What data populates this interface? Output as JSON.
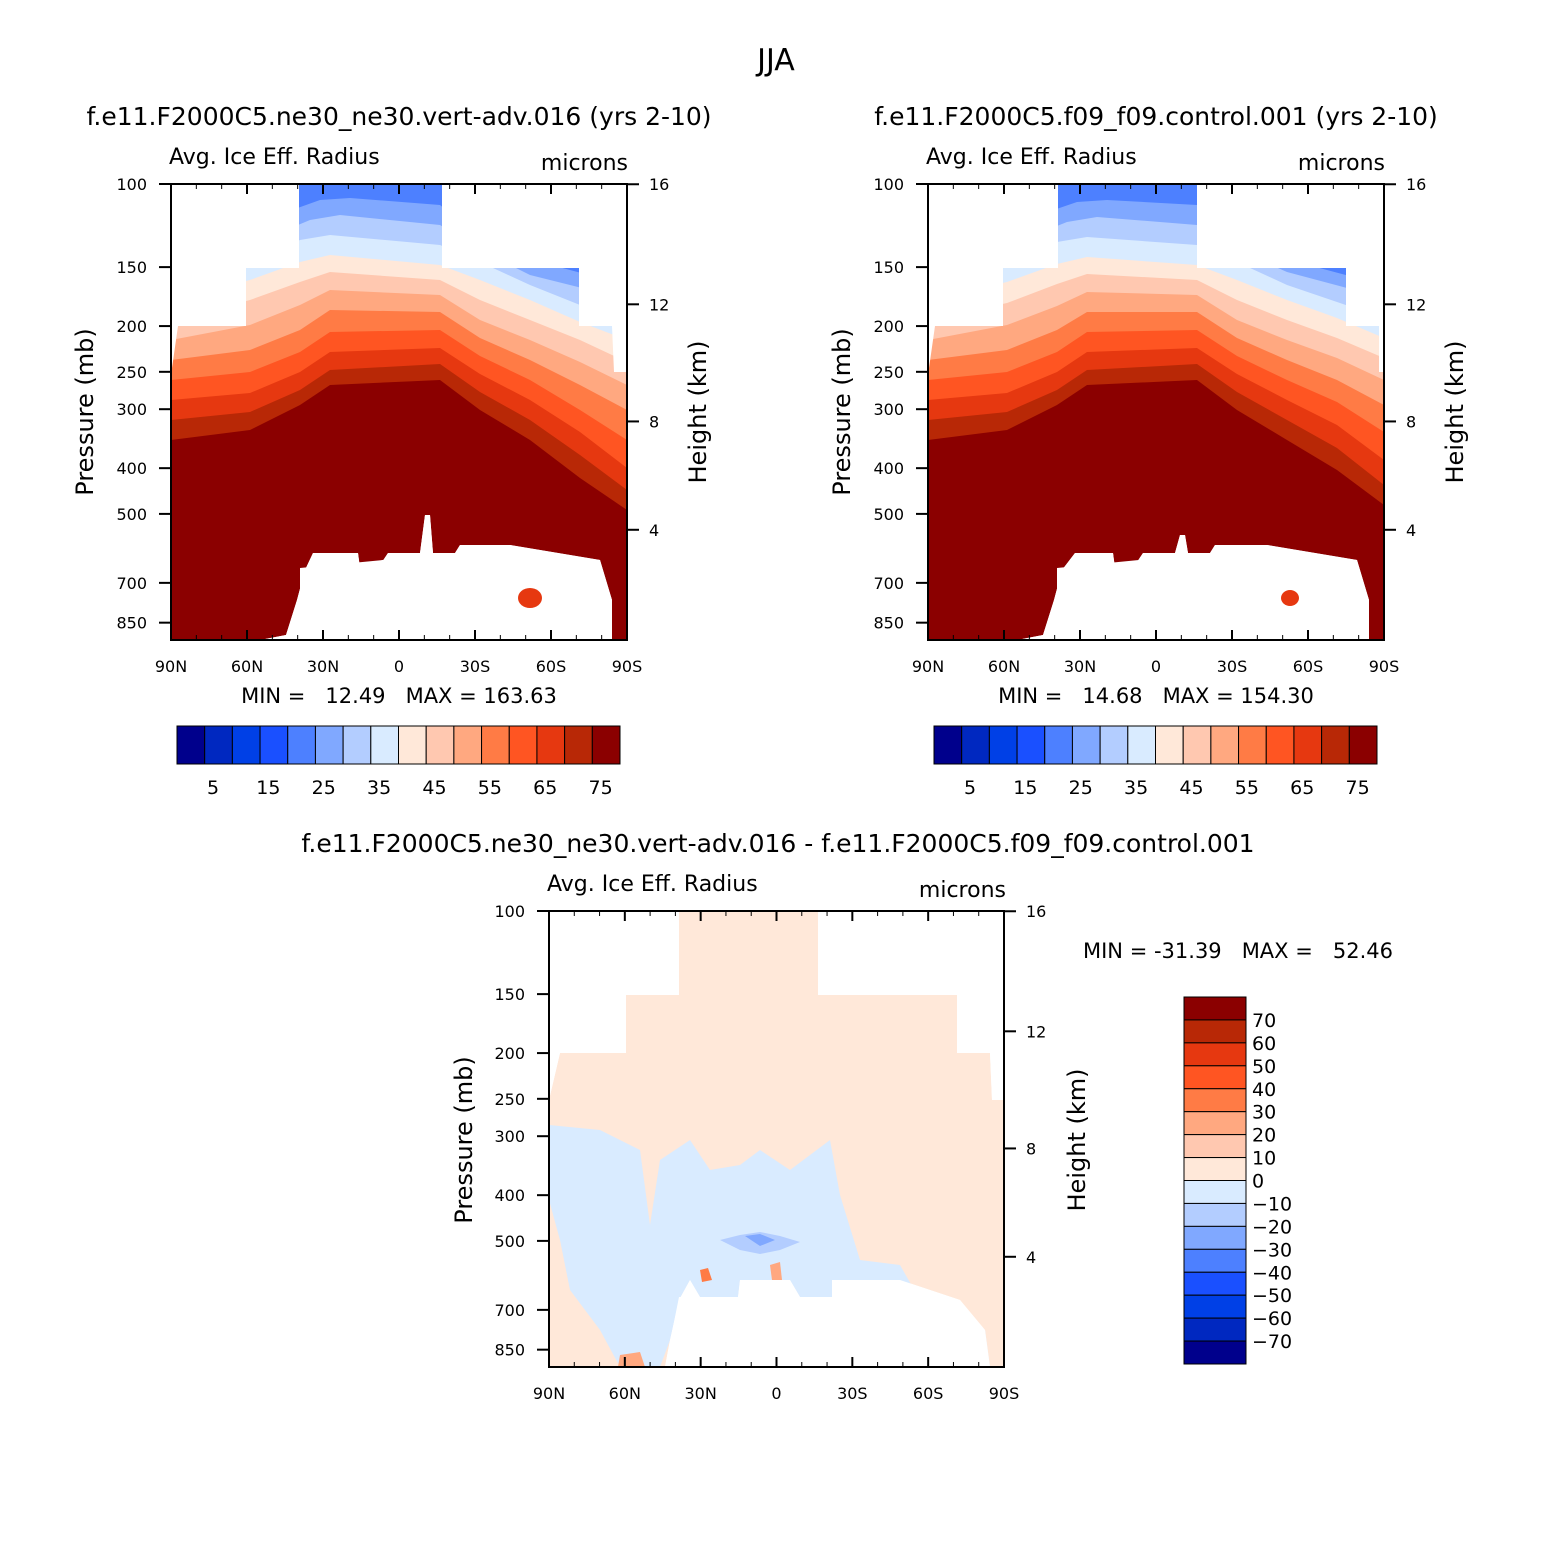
{
  "figure": {
    "main_title": "JJA"
  },
  "panels": [
    {
      "title": "f.e11.F2000C5.ne30_ne30.vert-adv.016 (yrs 2-10)",
      "variable": "Avg. Ice Eff. Radius",
      "units": "microns",
      "stats": "MIN =   12.49   MAX = 163.63"
    },
    {
      "title": "f.e11.F2000C5.f09_f09.control.001 (yrs 2-10)",
      "variable": "Avg. Ice Eff. Radius",
      "units": "microns",
      "stats": "MIN =   14.68   MAX = 154.30"
    },
    {
      "title": "f.e11.F2000C5.ne30_ne30.vert-adv.016 - f.e11.F2000C5.f09_f09.control.001",
      "variable": "Avg. Ice Eff. Radius",
      "units": "microns",
      "stats": "MIN = -31.39   MAX =   52.46"
    }
  ],
  "colors": {
    "abs_scale": [
      "#00008c",
      "#0028c0",
      "#0040e6",
      "#1a50ff",
      "#4d80ff",
      "#80a8ff",
      "#b3cdff",
      "#d9ebff",
      "#ffe8d9",
      "#ffc8b0",
      "#ffa880",
      "#ff7b45",
      "#ff5522",
      "#e63810",
      "#b82806",
      "#8b0000"
    ],
    "diff_scale": [
      "#00008c",
      "#0028c0",
      "#0040e6",
      "#1a50ff",
      "#4d80ff",
      "#80a8ff",
      "#b3cdff",
      "#d9ebff",
      "#ffe8d9",
      "#ffc8b0",
      "#ffa880",
      "#ff7b45",
      "#ff5522",
      "#e63810",
      "#b82806",
      "#8b0000"
    ]
  },
  "chart_data": [
    {
      "type": "heatmap",
      "title": "f.e11.F2000C5.ne30_ne30.vert-adv.016 (yrs 2-10)",
      "subtitle": "Avg. Ice Eff. Radius",
      "units": "microns",
      "xlabel": "",
      "ylabel": "Pressure (mb)",
      "y2label": "Height (km)",
      "x_ticks": [
        "90N",
        "60N",
        "30N",
        "0",
        "30S",
        "60S",
        "90S"
      ],
      "y_ticks": [
        "100",
        "150",
        "200",
        "250",
        "300",
        "400",
        "500",
        "700",
        "850"
      ],
      "y2_ticks": [
        "16",
        "12",
        "8",
        "4"
      ],
      "colorbar_levels": [
        "5",
        "15",
        "25",
        "35",
        "45",
        "55",
        "65",
        "75"
      ],
      "min": 12.49,
      "max": 163.63
    },
    {
      "type": "heatmap",
      "title": "f.e11.F2000C5.f09_f09.control.001 (yrs 2-10)",
      "subtitle": "Avg. Ice Eff. Radius",
      "units": "microns",
      "xlabel": "",
      "ylabel": "Pressure (mb)",
      "y2label": "Height (km)",
      "x_ticks": [
        "90N",
        "60N",
        "30N",
        "0",
        "30S",
        "60S",
        "90S"
      ],
      "y_ticks": [
        "100",
        "150",
        "200",
        "250",
        "300",
        "400",
        "500",
        "700",
        "850"
      ],
      "y2_ticks": [
        "16",
        "12",
        "8",
        "4"
      ],
      "colorbar_levels": [
        "5",
        "15",
        "25",
        "35",
        "45",
        "55",
        "65",
        "75"
      ],
      "min": 14.68,
      "max": 154.3
    },
    {
      "type": "heatmap",
      "title": "f.e11.F2000C5.ne30_ne30.vert-adv.016 - f.e11.F2000C5.f09_f09.control.001",
      "subtitle": "Avg. Ice Eff. Radius",
      "units": "microns",
      "xlabel": "",
      "ylabel": "Pressure (mb)",
      "y2label": "Height (km)",
      "x_ticks": [
        "90N",
        "60N",
        "30N",
        "0",
        "30S",
        "60S",
        "90S"
      ],
      "y_ticks": [
        "100",
        "150",
        "200",
        "250",
        "300",
        "400",
        "500",
        "700",
        "850"
      ],
      "y2_ticks": [
        "16",
        "12",
        "8",
        "4"
      ],
      "colorbar_levels": [
        "70",
        "60",
        "50",
        "40",
        "30",
        "20",
        "10",
        "0",
        "-10",
        "-20",
        "-30",
        "-40",
        "-50",
        "-60",
        "-70"
      ],
      "min": -31.39,
      "max": 52.46
    }
  ]
}
